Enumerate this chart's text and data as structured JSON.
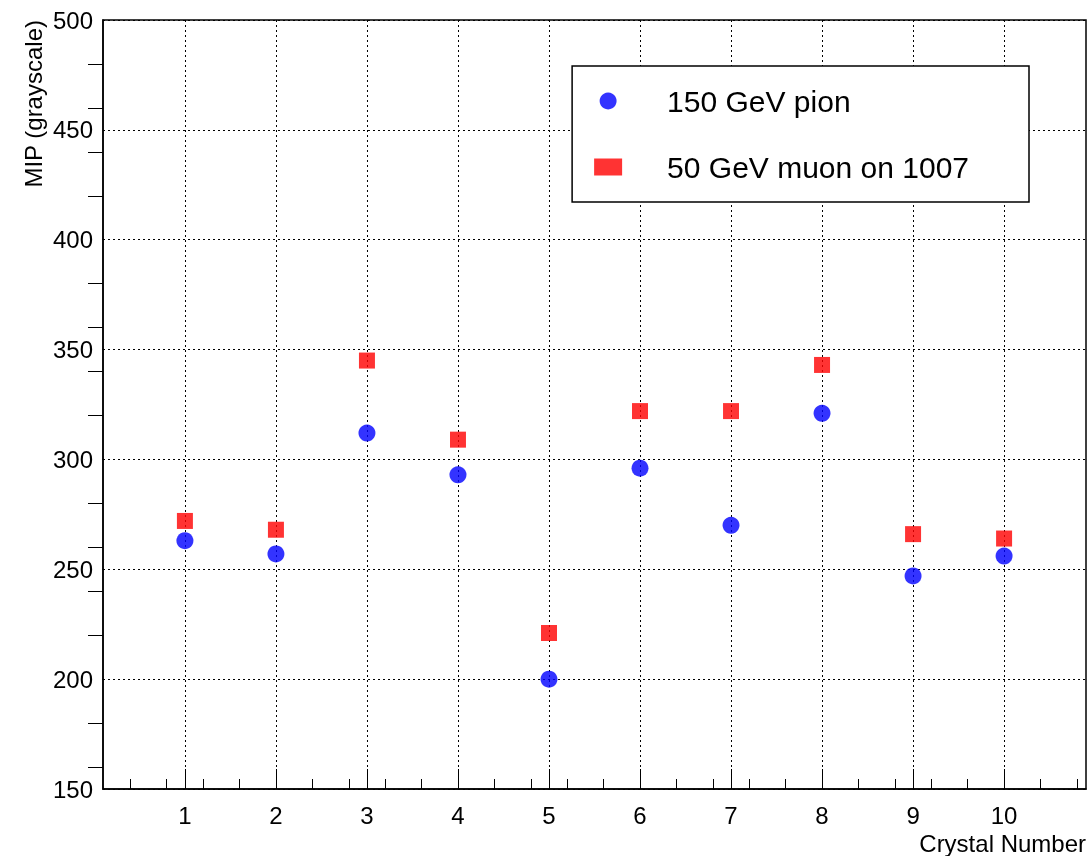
{
  "chart_data": {
    "type": "scatter",
    "xlabel": "Crystal Number",
    "ylabel": "MIP (grayscale)",
    "x": [
      1,
      2,
      3,
      4,
      5,
      6,
      7,
      8,
      9,
      10
    ],
    "series": [
      {
        "name": "150 GeV pion",
        "color": "#0000ff",
        "marker": "circle",
        "values": [
          263,
          257,
          312,
          293,
          200,
          296,
          270,
          321,
          247,
          256
        ]
      },
      {
        "name": "50 GeV muon on 1007",
        "color": "#ff0000",
        "marker": "square",
        "values": [
          272,
          268,
          345,
          309,
          221,
          322,
          322,
          343,
          266,
          264
        ]
      }
    ],
    "xlim": [
      0.1,
      10.9
    ],
    "xticks": [
      1,
      2,
      3,
      4,
      5,
      6,
      7,
      8,
      9,
      10
    ],
    "ylim": [
      150,
      500
    ],
    "yticks": [
      150,
      200,
      250,
      300,
      350,
      400,
      450,
      500
    ],
    "grid": true,
    "legend": "top right"
  }
}
